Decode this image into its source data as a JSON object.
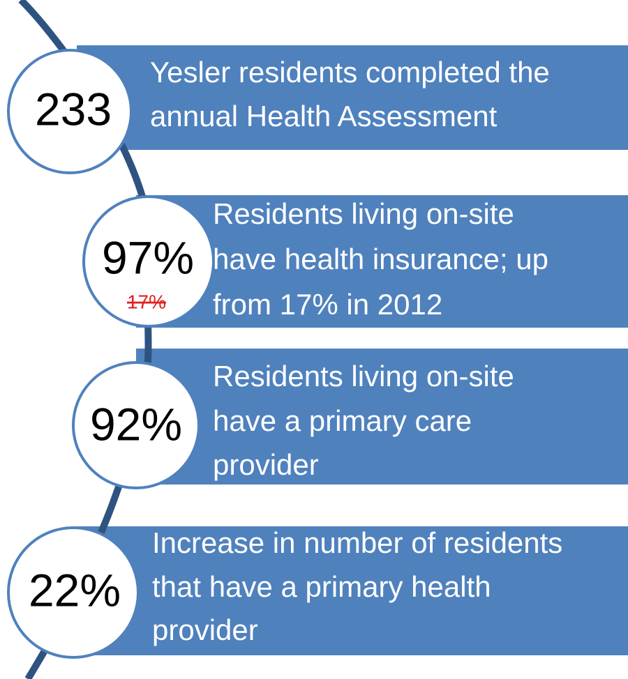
{
  "items": [
    {
      "number": "233",
      "lines": [
        "Yesler residents completed the",
        "annual Health Assessment"
      ]
    },
    {
      "number": "97%",
      "old": "17%",
      "lines": [
        "Residents living on-site",
        "have health insurance; up",
        "from 17% in 2012"
      ]
    },
    {
      "number": "92%",
      "lines": [
        "Residents living on-site",
        "have a primary care",
        "provider"
      ]
    },
    {
      "number": "22%",
      "lines": [
        "Increase in number of residents",
        "that have a primary health",
        "provider"
      ]
    }
  ]
}
